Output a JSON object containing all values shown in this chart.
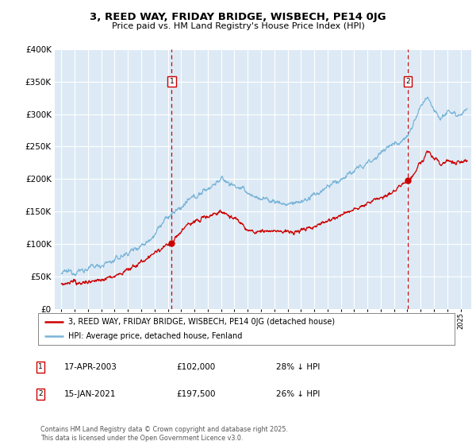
{
  "title": "3, REED WAY, FRIDAY BRIDGE, WISBECH, PE14 0JG",
  "subtitle": "Price paid vs. HM Land Registry's House Price Index (HPI)",
  "legend_line1": "3, REED WAY, FRIDAY BRIDGE, WISBECH, PE14 0JG (detached house)",
  "legend_line2": "HPI: Average price, detached house, Fenland",
  "sale1_date": "17-APR-2003",
  "sale1_price": "£102,000",
  "sale1_hpi": "28% ↓ HPI",
  "sale1_year": 2003.29,
  "sale1_value": 102000,
  "sale2_date": "15-JAN-2021",
  "sale2_price": "£197,500",
  "sale2_hpi": "26% ↓ HPI",
  "sale2_year": 2021.04,
  "sale2_value": 197500,
  "hpi_color": "#7ab4d8",
  "price_color": "#cc0000",
  "vline_color": "#cc0000",
  "bg_color": "#ddeaf5",
  "footer": "Contains HM Land Registry data © Crown copyright and database right 2025.\nThis data is licensed under the Open Government Licence v3.0.",
  "ylim": [
    0,
    400000
  ],
  "yticks": [
    0,
    50000,
    100000,
    150000,
    200000,
    250000,
    300000,
    350000,
    400000
  ],
  "xlim_start": 1994.5,
  "xlim_end": 2025.8
}
